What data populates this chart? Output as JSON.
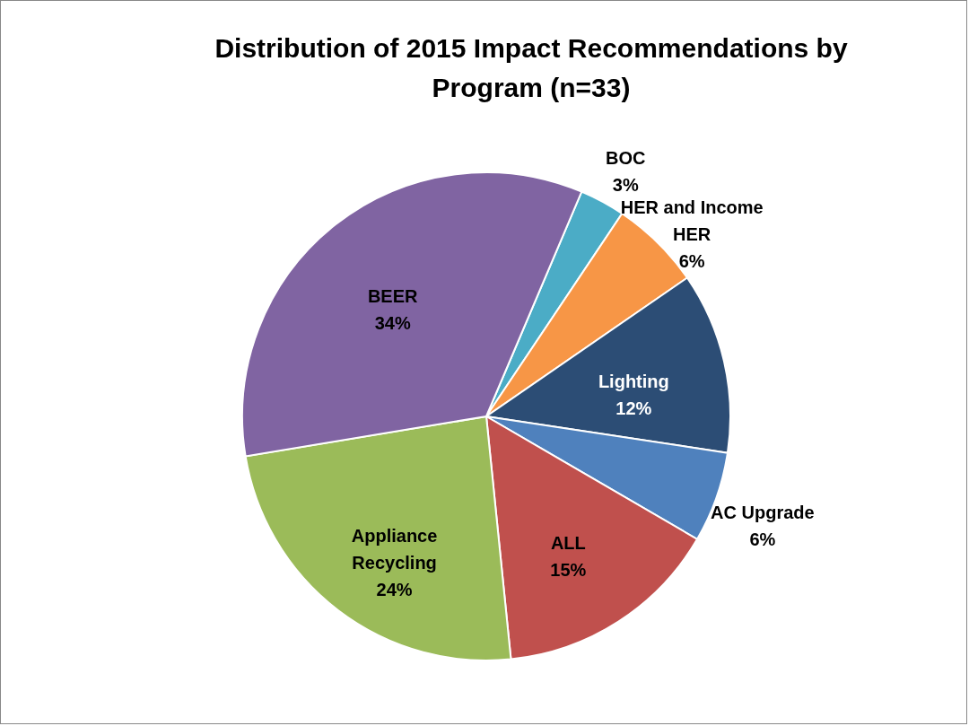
{
  "chart_data": {
    "type": "pie",
    "title": "Distribution of 2015 Impact Recommendations by Program (n=33)",
    "categories": [
      "BOC",
      "HER and Income HER",
      "Lighting",
      "AC Upgrade",
      "ALL",
      "Appliance Recycling",
      "BEER"
    ],
    "values": [
      3,
      6,
      12,
      6,
      15,
      24,
      34
    ],
    "colors": [
      "#4bacc6",
      "#f79646",
      "#2c4d75",
      "#4f81bd",
      "#c0504d",
      "#9bbb59",
      "#8064a2"
    ],
    "value_labels": [
      "3%",
      "6%",
      "12%",
      "6%",
      "15%",
      "24%",
      "34%"
    ],
    "legend": false
  }
}
